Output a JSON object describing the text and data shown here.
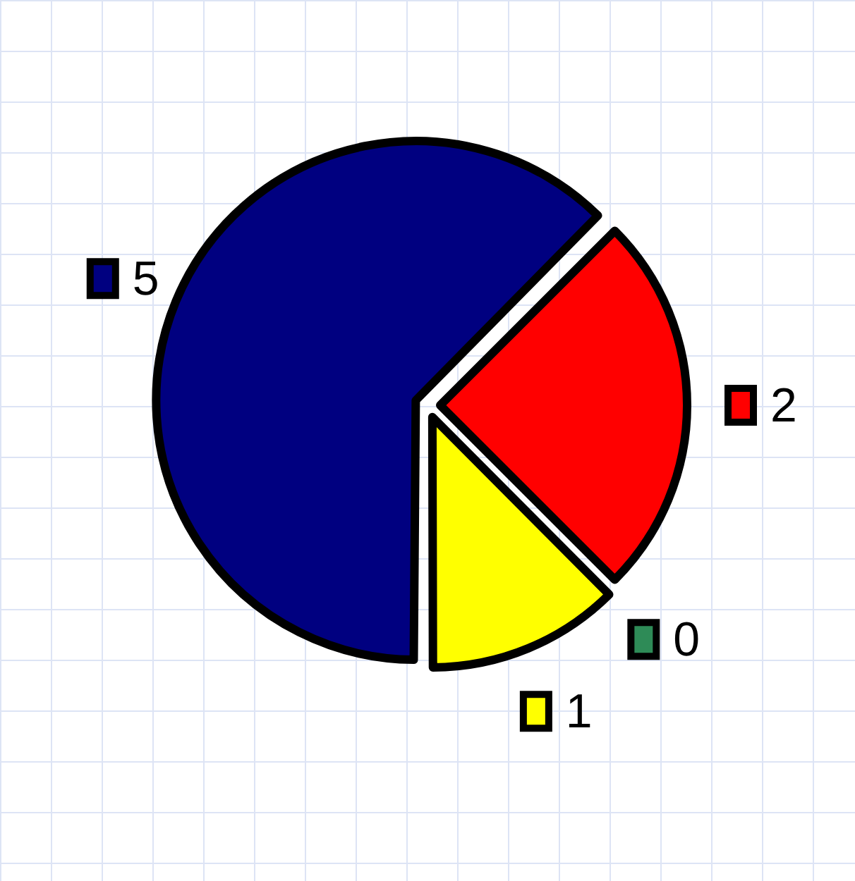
{
  "chart_data": {
    "type": "pie",
    "categories": [
      "2",
      "0",
      "1",
      "5"
    ],
    "values": [
      2,
      0,
      1,
      5
    ],
    "colors": [
      "#ff0000",
      "#2e8b57",
      "#ffff00",
      "#000080"
    ],
    "legend": "right"
  }
}
